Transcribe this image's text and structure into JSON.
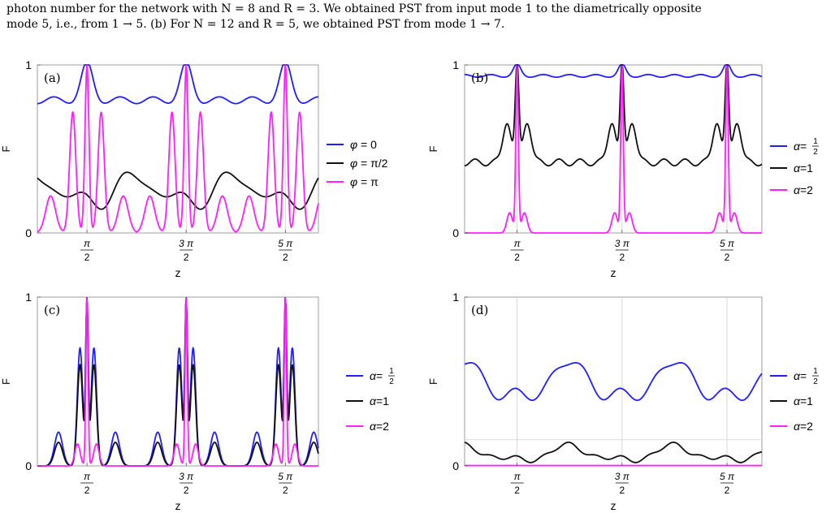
{
  "caption": {
    "line1": "photon number for the network with N = 8 and R = 3. We obtained PST from input mode 1 to the diametrically opposite",
    "line2": "mode 5, i.e., from 1 → 5. (b) For N = 12 and R = 5, we obtained PST from mode 1 → 7."
  },
  "colors": {
    "blue": "#1f1fff",
    "black": "#111111",
    "magenta": "#ff1fff"
  },
  "chart_data": [
    {
      "panel": "(a)",
      "type": "line",
      "xlabel": "z",
      "ylabel": "F",
      "ylim": [
        0,
        1
      ],
      "x_range": [
        0,
        8.9
      ],
      "yticks": [
        {
          "value": 0,
          "label": "0"
        },
        {
          "value": 1,
          "label": "1"
        }
      ],
      "xticks": [
        {
          "value": 1.5708,
          "num": "π",
          "den": "2"
        },
        {
          "value": 4.7124,
          "num": "3 π",
          "den": "2"
        },
        {
          "value": 7.854,
          "num": "5 π",
          "den": "2"
        }
      ],
      "gridlines_x": [
        1.5708,
        4.7124,
        7.854
      ],
      "legend_position": "right",
      "series": [
        {
          "name": "φ = 0",
          "color": "#1f1fff",
          "shape": "a_blue"
        },
        {
          "name": "φ = π/2",
          "color": "#111111",
          "shape": "a_black"
        },
        {
          "name": "φ = π",
          "color": "#ff1fff",
          "shape": "a_mag"
        }
      ]
    },
    {
      "panel": "(b)",
      "type": "line",
      "xlabel": "z",
      "ylabel": "F",
      "ylim": [
        0,
        1
      ],
      "x_range": [
        0,
        8.9
      ],
      "yticks": [
        {
          "value": 0,
          "label": "0"
        },
        {
          "value": 1,
          "label": "1"
        }
      ],
      "xticks": [
        {
          "value": 1.5708,
          "num": "π",
          "den": "2"
        },
        {
          "value": 4.7124,
          "num": "3 π",
          "den": "2"
        },
        {
          "value": 7.854,
          "num": "5 π",
          "den": "2"
        }
      ],
      "gridlines_x": [
        1.5708,
        4.7124,
        7.854
      ],
      "legend_position": "right",
      "series": [
        {
          "name": "α=",
          "frac_num": "1",
          "frac_den": "2",
          "color": "#1f1fff",
          "shape": "b_blue"
        },
        {
          "name": "α=1",
          "color": "#111111",
          "shape": "b_black"
        },
        {
          "name": "α=2",
          "color": "#ff1fff",
          "shape": "b_mag"
        }
      ]
    },
    {
      "panel": "(c)",
      "type": "line",
      "xlabel": "z",
      "ylabel": "F",
      "ylim": [
        0,
        1
      ],
      "x_range": [
        0,
        8.9
      ],
      "yticks": [
        {
          "value": 0,
          "label": "0"
        },
        {
          "value": 1,
          "label": "1"
        }
      ],
      "xticks": [
        {
          "value": 1.5708,
          "num": "π",
          "den": "2"
        },
        {
          "value": 4.7124,
          "num": "3 π",
          "den": "2"
        },
        {
          "value": 7.854,
          "num": "5 π",
          "den": "2"
        }
      ],
      "gridlines_x": [
        1.5708,
        4.7124,
        7.854
      ],
      "legend_position": "right",
      "series": [
        {
          "name": "α=",
          "frac_num": "1",
          "frac_den": "2",
          "color": "#1f1fff",
          "shape": "c_blue"
        },
        {
          "name": "α=1",
          "color": "#111111",
          "shape": "c_black"
        },
        {
          "name": "α=2",
          "color": "#ff1fff",
          "shape": "c_mag"
        }
      ]
    },
    {
      "panel": "(d)",
      "type": "line",
      "xlabel": "z",
      "ylabel": "F",
      "ylim": [
        0,
        1
      ],
      "x_range": [
        0,
        8.9
      ],
      "yticks": [
        {
          "value": 0,
          "label": "0"
        },
        {
          "value": 1,
          "label": "1"
        }
      ],
      "xticks": [
        {
          "value": 1.5708,
          "num": "π",
          "den": "2"
        },
        {
          "value": 4.7124,
          "num": "3 π",
          "den": "2"
        },
        {
          "value": 7.854,
          "num": "5 π",
          "den": "2"
        }
      ],
      "gridlines_x": [
        1.5708,
        4.7124,
        7.854
      ],
      "gridline_y": 0.155,
      "legend_position": "right",
      "series": [
        {
          "name": "α=",
          "frac_num": "1",
          "frac_den": "2",
          "color": "#1f1fff",
          "shape": "d_blue"
        },
        {
          "name": "α=1",
          "color": "#111111",
          "shape": "d_black"
        },
        {
          "name": "α=2",
          "color": "#ff1fff",
          "shape": "d_mag"
        }
      ]
    }
  ]
}
